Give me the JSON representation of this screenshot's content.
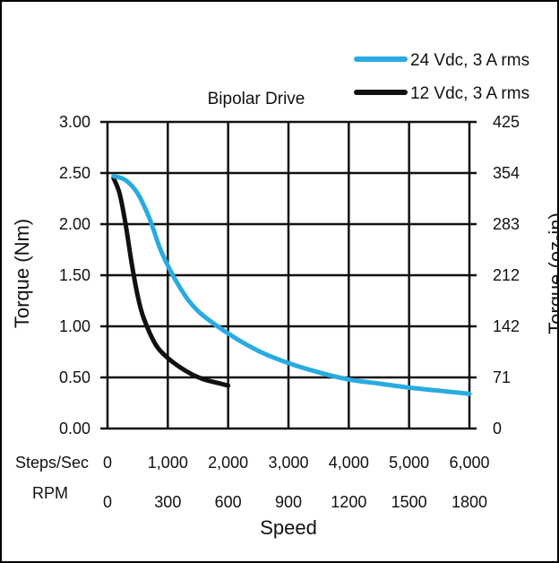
{
  "chart_data": {
    "type": "line",
    "title": "Bipolar Drive",
    "xlabel": "Speed",
    "ylabel": "Torque (Nm)",
    "y2label": "Torque (oz-in)",
    "x_unit_label": "Steps/Sec",
    "x2_unit_label": "RPM",
    "xlim": [
      0,
      6000
    ],
    "ylim": [
      0,
      3.0
    ],
    "x_ticks": [
      0,
      1000,
      2000,
      3000,
      4000,
      5000,
      6000
    ],
    "x_tick_labels": [
      "0",
      "1,000",
      "2,000",
      "3,000",
      "4,000",
      "5,000",
      "6,000"
    ],
    "x2_tick_labels": [
      "0",
      "300",
      "600",
      "900",
      "1200",
      "1500",
      "1800"
    ],
    "y_ticks": [
      0,
      0.5,
      1.0,
      1.5,
      2.0,
      2.5,
      3.0
    ],
    "y_tick_labels": [
      "0.00",
      "0.50",
      "1.00",
      "1.50",
      "2.00",
      "2.50",
      "3.00"
    ],
    "y2_tick_labels": [
      "0",
      "71",
      "142",
      "212",
      "283",
      "354",
      "425"
    ],
    "grid": true,
    "legend_position": "top-right",
    "series": [
      {
        "name": "24 Vdc, 3 A rms",
        "color": "#29abe2",
        "x": [
          100,
          300,
          500,
          700,
          900,
          1200,
          1500,
          2000,
          2500,
          3000,
          3500,
          4000,
          4500,
          5000,
          5500,
          6000
        ],
        "y": [
          2.47,
          2.43,
          2.3,
          2.05,
          1.72,
          1.38,
          1.15,
          0.93,
          0.76,
          0.64,
          0.55,
          0.48,
          0.44,
          0.4,
          0.37,
          0.34
        ]
      },
      {
        "name": "12 Vdc, 3 A rms",
        "color": "#111111",
        "x": [
          100,
          200,
          300,
          400,
          500,
          600,
          800,
          1000,
          1200,
          1400,
          1600,
          1800,
          2000
        ],
        "y": [
          2.45,
          2.3,
          2.0,
          1.62,
          1.3,
          1.08,
          0.82,
          0.69,
          0.6,
          0.53,
          0.48,
          0.45,
          0.42
        ]
      }
    ]
  }
}
